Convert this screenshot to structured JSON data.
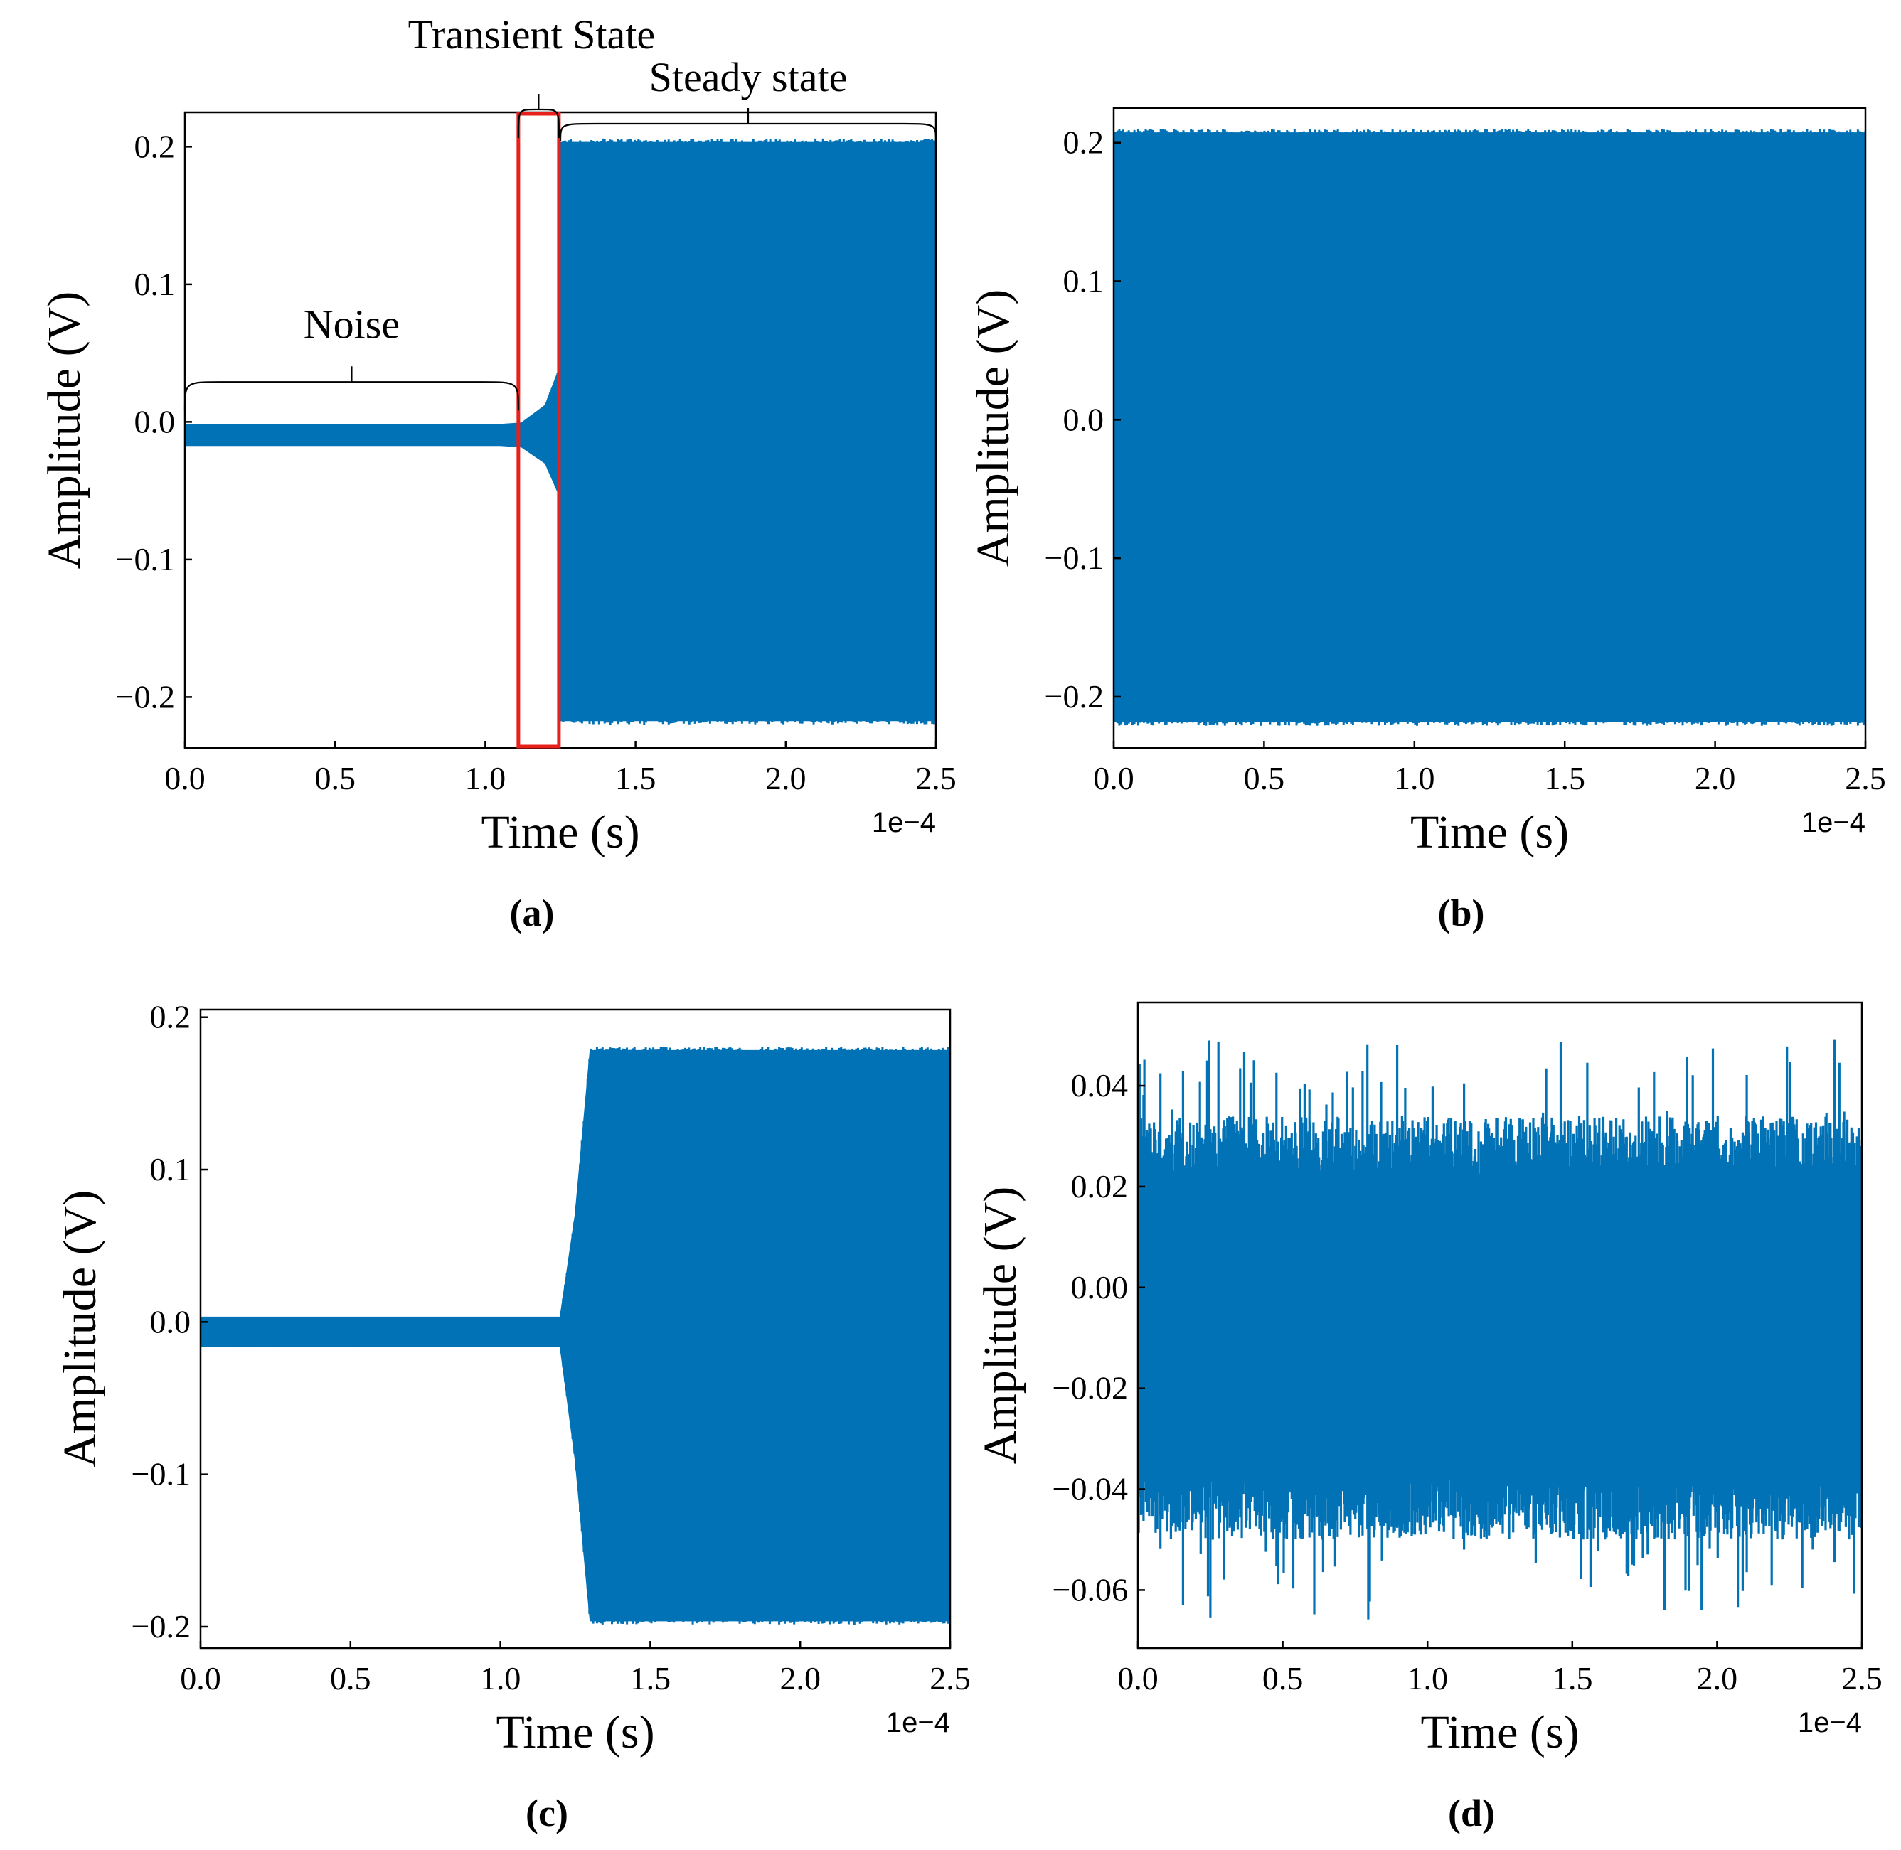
{
  "figure": {
    "signal_color": "#0072b5",
    "highlight_color": "#e8201c"
  },
  "chart_data": [
    {
      "id": "a",
      "panel_label": "(a)",
      "type": "line",
      "xlabel": "Time (s)",
      "ylabel": "Amplitude (V)",
      "x_offset_label": "1e−4",
      "xlim": [
        0,
        2.5
      ],
      "ylim": [
        -0.237,
        0.225
      ],
      "xticks": [
        0.0,
        0.5,
        1.0,
        1.5,
        2.0,
        2.5
      ],
      "xtick_labels": [
        "0.0",
        "0.5",
        "1.0",
        "1.5",
        "2.0",
        "2.5"
      ],
      "yticks": [
        -0.2,
        -0.1,
        0.0,
        0.1,
        0.2
      ],
      "ytick_labels": [
        "−0.2",
        "−0.1",
        "0.0",
        "0.1",
        "0.2"
      ],
      "envelope": [
        {
          "x": 0.0,
          "hi": -0.002,
          "lo": -0.017
        },
        {
          "x": 1.05,
          "hi": -0.002,
          "lo": -0.017
        },
        {
          "x": 1.12,
          "hi": -0.001,
          "lo": -0.018
        },
        {
          "x": 1.2,
          "hi": 0.012,
          "lo": -0.03
        },
        {
          "x": 1.24,
          "hi": 0.035,
          "lo": -0.05
        },
        {
          "x": 1.245,
          "hi": 0.035,
          "lo": -0.05
        },
        {
          "x": 1.25,
          "hi": 0.203,
          "lo": -0.217
        },
        {
          "x": 2.5,
          "hi": 0.203,
          "lo": -0.217
        }
      ],
      "transient_box": {
        "x0": 1.11,
        "x1": 1.245
      },
      "annotations": [
        {
          "label": "Noise",
          "x0": 0.0,
          "x1": 1.11
        },
        {
          "label": "Transient State",
          "x0": 1.11,
          "x1": 1.245
        },
        {
          "label": "Steady state",
          "x0": 1.25,
          "x1": 2.5
        }
      ]
    },
    {
      "id": "b",
      "panel_label": "(b)",
      "type": "line",
      "xlabel": "Time (s)",
      "ylabel": "Amplitude (V)",
      "x_offset_label": "1e−4",
      "xlim": [
        0,
        2.5
      ],
      "ylim": [
        -0.237,
        0.225
      ],
      "xticks": [
        0.0,
        0.5,
        1.0,
        1.5,
        2.0,
        2.5
      ],
      "xtick_labels": [
        "0.0",
        "0.5",
        "1.0",
        "1.5",
        "2.0",
        "2.5"
      ],
      "yticks": [
        -0.2,
        -0.1,
        0.0,
        0.1,
        0.2
      ],
      "ytick_labels": [
        "−0.2",
        "−0.1",
        "0.0",
        "0.1",
        "0.2"
      ],
      "envelope": [
        {
          "x": 0.0,
          "hi": 0.207,
          "lo": -0.218
        },
        {
          "x": 2.5,
          "hi": 0.207,
          "lo": -0.218
        }
      ]
    },
    {
      "id": "c",
      "panel_label": "(c)",
      "type": "line",
      "xlabel": "Time (s)",
      "ylabel": "Amplitude (V)",
      "x_offset_label": "1e−4",
      "xlim": [
        0,
        2.5
      ],
      "ylim": [
        -0.214,
        0.205
      ],
      "xticks": [
        0.0,
        0.5,
        1.0,
        1.5,
        2.0,
        2.5
      ],
      "xtick_labels": [
        "0.0",
        "0.5",
        "1.0",
        "1.5",
        "2.0",
        "2.5"
      ],
      "yticks": [
        -0.2,
        -0.1,
        0.0,
        0.1,
        0.2
      ],
      "ytick_labels": [
        "−0.2",
        "−0.1",
        "0.0",
        "0.1",
        "0.2"
      ],
      "envelope": [
        {
          "x": 0.0,
          "hi": 0.003,
          "lo": -0.016
        },
        {
          "x": 1.2,
          "hi": 0.003,
          "lo": -0.016
        },
        {
          "x": 1.25,
          "hi": 0.07,
          "lo": -0.09
        },
        {
          "x": 1.3,
          "hi": 0.178,
          "lo": -0.196
        },
        {
          "x": 2.5,
          "hi": 0.178,
          "lo": -0.196
        }
      ]
    },
    {
      "id": "d",
      "panel_label": "(d)",
      "type": "line",
      "xlabel": "Time (s)",
      "ylabel": "Amplitude (V)",
      "x_offset_label": "1e−4",
      "xlim": [
        0,
        2.5
      ],
      "ylim": [
        -0.0715,
        0.0565
      ],
      "xticks": [
        0.0,
        0.5,
        1.0,
        1.5,
        2.0,
        2.5
      ],
      "xtick_labels": [
        "0.0",
        "0.5",
        "1.0",
        "1.5",
        "2.0",
        "2.5"
      ],
      "yticks": [
        -0.06,
        -0.04,
        -0.02,
        0.0,
        0.02,
        0.04
      ],
      "ytick_labels": [
        "−0.06",
        "−0.04",
        "−0.02",
        "0.00",
        "0.02",
        "0.04"
      ],
      "noise": {
        "base_hi": 0.028,
        "base_lo": -0.044,
        "peak_max": 0.05,
        "peak_min": -0.066
      }
    }
  ]
}
